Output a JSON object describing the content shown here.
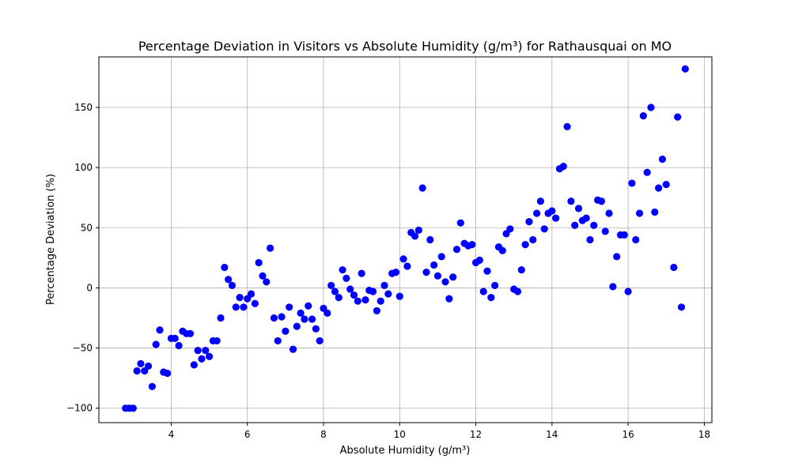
{
  "chart_data": {
    "type": "scatter",
    "title": "Percentage Deviation in Visitors vs Absolute Humidity (g/m³) for Rathausquai on MO",
    "xlabel": "Absolute Humidity (g/m³)",
    "ylabel": "Percentage Deviation (%)",
    "xlim": [
      2.1,
      18.2
    ],
    "ylim": [
      -112,
      192
    ],
    "xticks": [
      4,
      6,
      8,
      10,
      12,
      14,
      16,
      18
    ],
    "yticks": [
      -100,
      -50,
      0,
      50,
      100,
      150
    ],
    "grid": true,
    "color": "#0000ff",
    "series": [
      {
        "points": [
          [
            2.8,
            -100
          ],
          [
            2.9,
            -100
          ],
          [
            3.0,
            -100
          ],
          [
            3.1,
            -69
          ],
          [
            3.2,
            -63
          ],
          [
            3.3,
            -69
          ],
          [
            3.4,
            -65
          ],
          [
            3.5,
            -82
          ],
          [
            3.6,
            -47
          ],
          [
            3.7,
            -35
          ],
          [
            3.8,
            -70
          ],
          [
            3.9,
            -71
          ],
          [
            4.0,
            -42
          ],
          [
            4.1,
            -42
          ],
          [
            4.2,
            -48
          ],
          [
            4.3,
            -36
          ],
          [
            4.4,
            -38
          ],
          [
            4.5,
            -38
          ],
          [
            4.6,
            -64
          ],
          [
            4.7,
            -52
          ],
          [
            4.8,
            -59
          ],
          [
            4.9,
            -52
          ],
          [
            5.0,
            -57
          ],
          [
            5.1,
            -44
          ],
          [
            5.2,
            -44
          ],
          [
            5.3,
            -25
          ],
          [
            5.4,
            17
          ],
          [
            5.5,
            7
          ],
          [
            5.6,
            2
          ],
          [
            5.7,
            -16
          ],
          [
            5.8,
            -8
          ],
          [
            5.9,
            -16
          ],
          [
            6.0,
            -9
          ],
          [
            6.1,
            -5
          ],
          [
            6.2,
            -13
          ],
          [
            6.3,
            21
          ],
          [
            6.4,
            10
          ],
          [
            6.5,
            5
          ],
          [
            6.6,
            33
          ],
          [
            6.7,
            -25
          ],
          [
            6.8,
            -44
          ],
          [
            6.9,
            -24
          ],
          [
            7.0,
            -36
          ],
          [
            7.1,
            -16
          ],
          [
            7.2,
            -51
          ],
          [
            7.3,
            -32
          ],
          [
            7.4,
            -21
          ],
          [
            7.5,
            -26
          ],
          [
            7.6,
            -15
          ],
          [
            7.7,
            -26
          ],
          [
            7.8,
            -34
          ],
          [
            7.9,
            -44
          ],
          [
            8.0,
            -17
          ],
          [
            8.1,
            -21
          ],
          [
            8.2,
            2
          ],
          [
            8.3,
            -3
          ],
          [
            8.4,
            -8
          ],
          [
            8.5,
            15
          ],
          [
            8.6,
            8
          ],
          [
            8.7,
            -1
          ],
          [
            8.8,
            -6
          ],
          [
            8.9,
            -11
          ],
          [
            9.0,
            12
          ],
          [
            9.1,
            -10
          ],
          [
            9.2,
            -2
          ],
          [
            9.3,
            -3
          ],
          [
            9.4,
            -19
          ],
          [
            9.5,
            -11
          ],
          [
            9.6,
            2
          ],
          [
            9.7,
            -5
          ],
          [
            9.8,
            12
          ],
          [
            9.9,
            13
          ],
          [
            10.0,
            -7
          ],
          [
            10.1,
            24
          ],
          [
            10.2,
            18
          ],
          [
            10.3,
            46
          ],
          [
            10.4,
            43
          ],
          [
            10.5,
            48
          ],
          [
            10.6,
            83
          ],
          [
            10.7,
            13
          ],
          [
            10.8,
            40
          ],
          [
            10.9,
            19
          ],
          [
            11.0,
            10
          ],
          [
            11.1,
            26
          ],
          [
            11.2,
            5
          ],
          [
            11.3,
            -9
          ],
          [
            11.4,
            9
          ],
          [
            11.5,
            32
          ],
          [
            11.6,
            54
          ],
          [
            11.7,
            37
          ],
          [
            11.8,
            35
          ],
          [
            11.9,
            36
          ],
          [
            12.0,
            21
          ],
          [
            12.1,
            23
          ],
          [
            12.2,
            -3
          ],
          [
            12.3,
            14
          ],
          [
            12.4,
            -8
          ],
          [
            12.5,
            2
          ],
          [
            12.6,
            34
          ],
          [
            12.7,
            31
          ],
          [
            12.8,
            45
          ],
          [
            12.9,
            49
          ],
          [
            13.0,
            -1
          ],
          [
            13.1,
            -3
          ],
          [
            13.2,
            15
          ],
          [
            13.3,
            36
          ],
          [
            13.4,
            55
          ],
          [
            13.5,
            40
          ],
          [
            13.6,
            62
          ],
          [
            13.7,
            72
          ],
          [
            13.8,
            49
          ],
          [
            13.9,
            62
          ],
          [
            14.0,
            64
          ],
          [
            14.1,
            58
          ],
          [
            14.2,
            99
          ],
          [
            14.3,
            101
          ],
          [
            14.4,
            134
          ],
          [
            14.5,
            72
          ],
          [
            14.6,
            52
          ],
          [
            14.7,
            66
          ],
          [
            14.8,
            56
          ],
          [
            14.9,
            58
          ],
          [
            15.0,
            40
          ],
          [
            15.1,
            52
          ],
          [
            15.2,
            73
          ],
          [
            15.3,
            72
          ],
          [
            15.4,
            47
          ],
          [
            15.5,
            62
          ],
          [
            15.6,
            1
          ],
          [
            15.7,
            26
          ],
          [
            15.8,
            44
          ],
          [
            15.9,
            44
          ],
          [
            16.0,
            -3
          ],
          [
            16.1,
            87
          ],
          [
            16.2,
            40
          ],
          [
            16.3,
            62
          ],
          [
            16.4,
            143
          ],
          [
            16.5,
            96
          ],
          [
            16.6,
            150
          ],
          [
            16.7,
            63
          ],
          [
            16.8,
            83
          ],
          [
            16.9,
            107
          ],
          [
            17.0,
            86
          ],
          [
            17.2,
            17
          ],
          [
            17.3,
            142
          ],
          [
            17.4,
            -16
          ],
          [
            17.5,
            182
          ]
        ]
      }
    ]
  }
}
